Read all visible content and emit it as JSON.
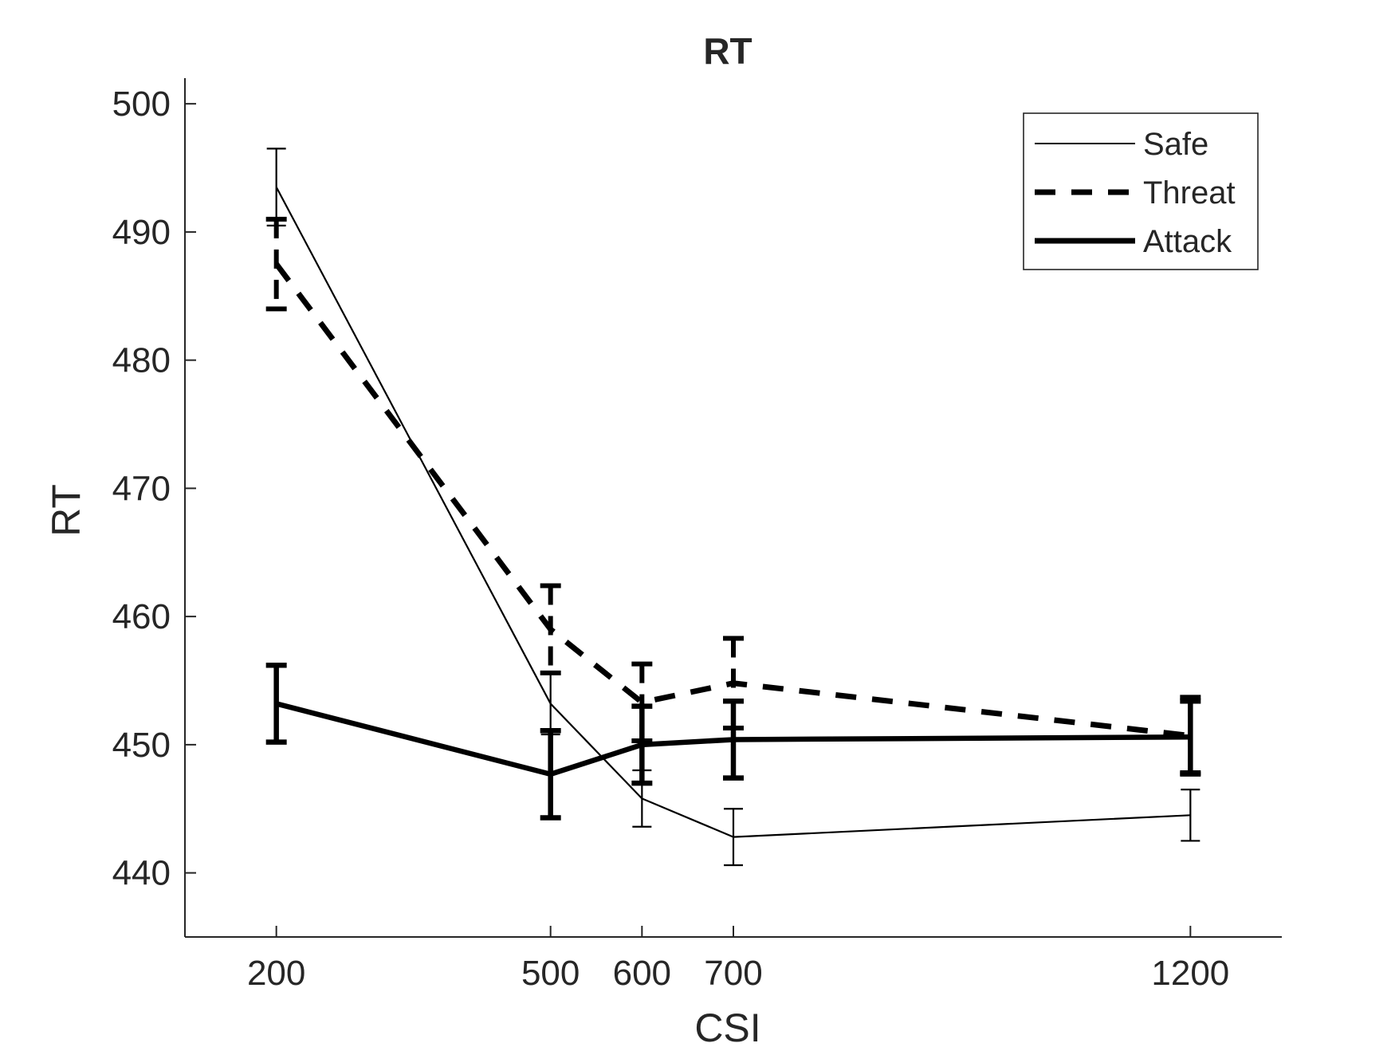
{
  "chart_data": {
    "type": "line",
    "title": "RT",
    "xlabel": "CSI",
    "ylabel": "RT",
    "x": [
      200,
      500,
      600,
      700,
      1200
    ],
    "x_ticks": [
      "200",
      "500",
      "600",
      "700",
      "1200"
    ],
    "xlim": [
      100,
      1300
    ],
    "ylim": [
      435,
      502
    ],
    "y_ticks": [
      "440",
      "450",
      "460",
      "470",
      "480",
      "490",
      "500"
    ],
    "grid": false,
    "legend_position": "top-right",
    "series": [
      {
        "name": "Safe",
        "style": "thin-solid",
        "values": [
          493.5,
          453.2,
          445.8,
          442.8,
          444.5
        ],
        "errors": [
          3.0,
          2.4,
          2.2,
          2.2,
          2.0
        ]
      },
      {
        "name": "Threat",
        "style": "dashed",
        "values": [
          487.5,
          459.0,
          453.3,
          454.8,
          450.7
        ],
        "errors": [
          3.5,
          3.4,
          3.0,
          3.5,
          3.0
        ]
      },
      {
        "name": "Attack",
        "style": "thick-solid",
        "values": [
          453.2,
          447.7,
          450.0,
          450.4,
          450.6
        ],
        "errors": [
          3.0,
          3.4,
          3.0,
          3.0,
          2.8
        ]
      }
    ],
    "colors": {
      "line": "#000000",
      "axis": "#262626",
      "text": "#262626",
      "background": "#ffffff"
    }
  }
}
